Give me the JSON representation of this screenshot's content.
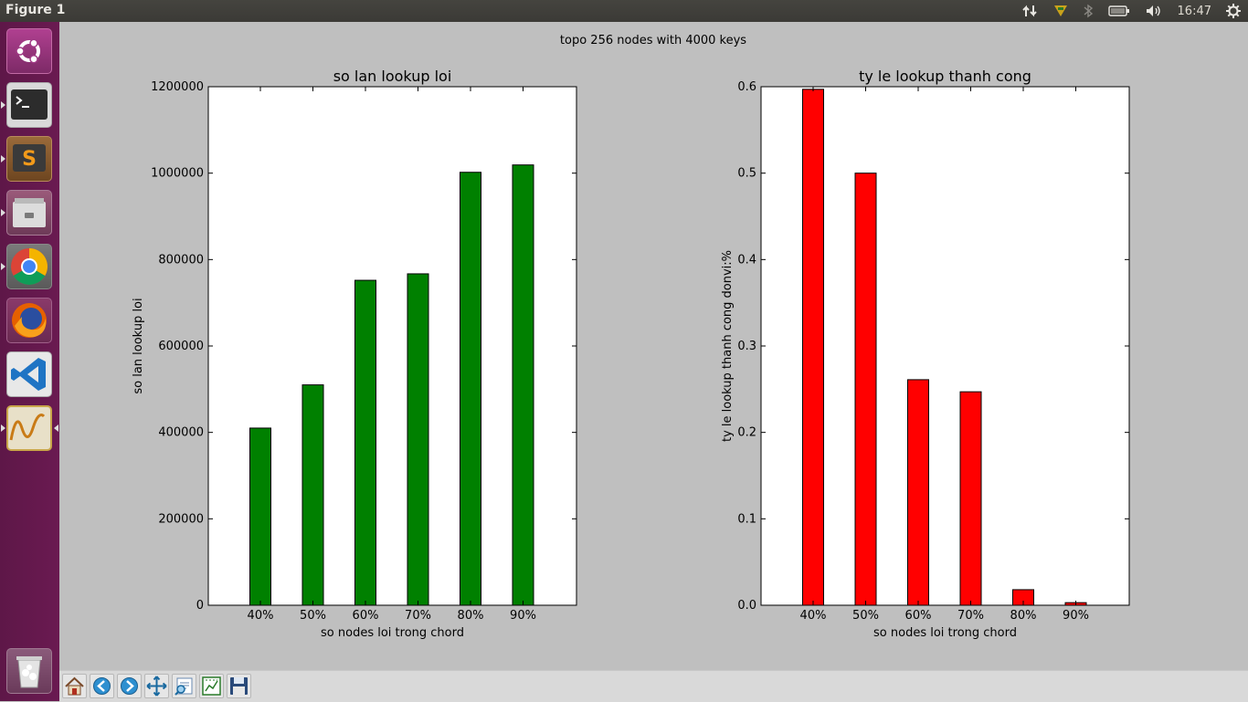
{
  "window": {
    "title": "Figure 1"
  },
  "tray": {
    "time": "16:47"
  },
  "launcher": [
    {
      "name": "ubuntu-logo-icon"
    },
    {
      "name": "terminal-icon"
    },
    {
      "name": "sublime-text-icon"
    },
    {
      "name": "files-icon"
    },
    {
      "name": "chrome-icon"
    },
    {
      "name": "firefox-icon"
    },
    {
      "name": "vscode-icon"
    },
    {
      "name": "figure-app-icon"
    },
    {
      "name": "trash-icon"
    }
  ],
  "toolbar": [
    {
      "name": "home-icon"
    },
    {
      "name": "back-icon"
    },
    {
      "name": "forward-icon"
    },
    {
      "name": "pan-icon"
    },
    {
      "name": "zoom-icon"
    },
    {
      "name": "subplots-icon"
    },
    {
      "name": "save-icon"
    }
  ],
  "figure": {
    "suptitle": "topo 256 nodes with 4000 keys"
  },
  "chart_data": [
    {
      "type": "bar",
      "title": "so lan lookup loi",
      "xlabel": "so nodes loi trong chord",
      "ylabel": "so lan lookup loi",
      "categories": [
        "40%",
        "50%",
        "60%",
        "70%",
        "80%",
        "90%"
      ],
      "values": [
        410000,
        510000,
        752000,
        767000,
        1002000,
        1019000
      ],
      "ylim": [
        0,
        1200000
      ],
      "yticks": [
        "0",
        "200000",
        "400000",
        "600000",
        "800000",
        "1000000",
        "1200000"
      ],
      "color": "#008000"
    },
    {
      "type": "bar",
      "title": "ty le lookup thanh cong",
      "xlabel": "so nodes loi trong chord",
      "ylabel": "ty le lookup thanh cong donvi:%",
      "categories": [
        "40%",
        "50%",
        "60%",
        "70%",
        "80%",
        "90%"
      ],
      "values": [
        0.597,
        0.5,
        0.261,
        0.247,
        0.018,
        0.003
      ],
      "ylim": [
        0,
        0.6
      ],
      "yticks": [
        "0.0",
        "0.1",
        "0.2",
        "0.3",
        "0.4",
        "0.5",
        "0.6"
      ],
      "color": "#ff0000"
    }
  ]
}
